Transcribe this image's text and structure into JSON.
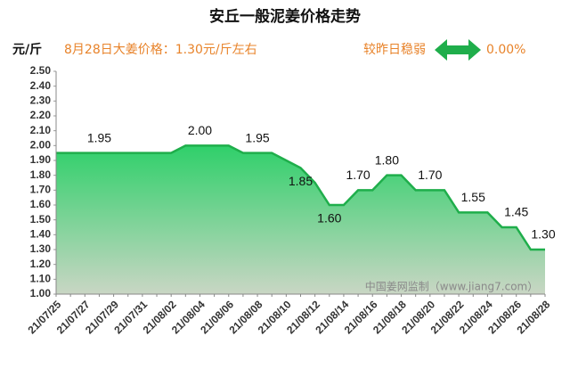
{
  "chart_data": {
    "type": "area",
    "title": "安丘一般泥姜价格走势",
    "y_unit": "元/斤",
    "subtitle": "8月28日大姜价格：1.30元/斤左右",
    "change_label": "较昨日稳弱",
    "change_value": "0.00%",
    "watermark": "中国姜网监制（www.jiang7.com）",
    "color": "#1fae4b",
    "categories": [
      "21/07/25",
      null,
      "21/07/27",
      null,
      "21/07/29",
      null,
      "21/07/31",
      null,
      "21/08/02",
      null,
      "21/08/04",
      null,
      "21/08/06",
      null,
      "21/08/08",
      null,
      "21/08/10",
      null,
      "21/08/12",
      null,
      "21/08/14",
      null,
      "21/08/16",
      null,
      "21/08/18",
      null,
      "21/08/20",
      null,
      "21/08/22",
      null,
      "21/08/24",
      null,
      "21/08/26",
      null,
      "21/08/28"
    ],
    "values": [
      1.95,
      1.95,
      1.95,
      1.95,
      1.95,
      1.95,
      1.95,
      1.95,
      1.95,
      2.0,
      2.0,
      2.0,
      2.0,
      1.95,
      1.95,
      1.95,
      1.9,
      1.85,
      1.75,
      1.6,
      1.6,
      1.7,
      1.7,
      1.8,
      1.8,
      1.7,
      1.7,
      1.7,
      1.55,
      1.55,
      1.55,
      1.45,
      1.45,
      1.3,
      1.3
    ],
    "value_labels": [
      null,
      null,
      null,
      "1.95",
      null,
      null,
      null,
      null,
      null,
      null,
      "2.00",
      null,
      null,
      null,
      "1.95",
      null,
      null,
      "1.85",
      null,
      "1.60",
      null,
      "1.70",
      null,
      "1.80",
      null,
      null,
      "1.70",
      null,
      null,
      "1.55",
      null,
      null,
      "1.45",
      null,
      "1.30"
    ],
    "ylim": [
      1.0,
      2.5
    ],
    "yticks": [
      {
        "value": 1.0,
        "label": "1.00"
      },
      {
        "value": 1.1,
        "label": "1.10"
      },
      {
        "value": 1.2,
        "label": "1.20"
      },
      {
        "value": 1.3,
        "label": "1.30"
      },
      {
        "value": 1.4,
        "label": "1.40"
      },
      {
        "value": 1.5,
        "label": "1.50"
      },
      {
        "value": 1.6,
        "label": "1.60"
      },
      {
        "value": 1.7,
        "label": "1.70"
      },
      {
        "value": 1.8,
        "label": "1.80"
      },
      {
        "value": 1.9,
        "label": "1.90"
      },
      {
        "value": 2.0,
        "label": "2.00"
      },
      {
        "value": 2.1,
        "label": "2.10"
      },
      {
        "value": 2.2,
        "label": "2.20"
      },
      {
        "value": 2.3,
        "label": "2.30"
      },
      {
        "value": 2.4,
        "label": "2.40"
      },
      {
        "value": 2.5,
        "label": "2.50"
      }
    ],
    "grid": false
  }
}
